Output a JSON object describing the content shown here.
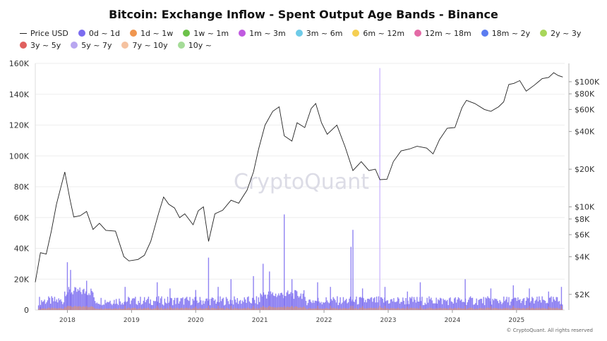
{
  "chart_data": {
    "type": "area",
    "title": "Bitcoin: Exchange Inflow - Spent Output Age Bands - Binance",
    "legend": [
      {
        "name": "Price USD",
        "color": "#222222",
        "kind": "line"
      },
      {
        "name": "0d ~ 1d",
        "color": "#7b6cf0",
        "kind": "dot"
      },
      {
        "name": "1d ~ 1w",
        "color": "#f0964f",
        "kind": "dot"
      },
      {
        "name": "1w ~ 1m",
        "color": "#6cc24a",
        "kind": "dot"
      },
      {
        "name": "1m ~ 3m",
        "color": "#c05ae0",
        "kind": "dot"
      },
      {
        "name": "3m ~ 6m",
        "color": "#6fcbe8",
        "kind": "dot"
      },
      {
        "name": "6m ~ 12m",
        "color": "#f5cf52",
        "kind": "dot"
      },
      {
        "name": "12m ~ 18m",
        "color": "#e46aa6",
        "kind": "dot"
      },
      {
        "name": "18m ~ 2y",
        "color": "#5b7cf0",
        "kind": "dot"
      },
      {
        "name": "2y ~ 3y",
        "color": "#a8d65a",
        "kind": "dot"
      },
      {
        "name": "3y ~ 5y",
        "color": "#e0605e",
        "kind": "dot"
      },
      {
        "name": "5y ~ 7y",
        "color": "#b8a6f0",
        "kind": "dot"
      },
      {
        "name": "7y ~ 10y",
        "color": "#f5c2a0",
        "kind": "dot"
      },
      {
        "name": "10y ~",
        "color": "#a5dc98",
        "kind": "dot"
      }
    ],
    "left_axis": {
      "ticks": [
        "0",
        "20K",
        "40K",
        "60K",
        "80K",
        "100K",
        "120K",
        "140K",
        "160K"
      ],
      "min": 0,
      "max": 160000
    },
    "right_axis": {
      "scale": "log",
      "ticks": [
        {
          "label": "$2K",
          "value": 2000
        },
        {
          "label": "$4K",
          "value": 4000
        },
        {
          "label": "$6K",
          "value": 6000
        },
        {
          "label": "$8K",
          "value": 8000
        },
        {
          "label": "$10K",
          "value": 10000
        },
        {
          "label": "$20K",
          "value": 20000
        },
        {
          "label": "$40K",
          "value": 40000
        },
        {
          "label": "$60K",
          "value": 60000
        },
        {
          "label": "$80K",
          "value": 80000
        },
        {
          "label": "$100K",
          "value": 100000
        }
      ],
      "min": 1500,
      "max": 140000
    },
    "x_axis": {
      "labels": [
        "2018",
        "2019",
        "2020",
        "2021",
        "2022",
        "2023",
        "2024",
        "2025"
      ],
      "start": 2017.5,
      "end": 2025.75
    },
    "price_usd": [
      [
        2017.5,
        2500
      ],
      [
        2017.58,
        4300
      ],
      [
        2017.67,
        4200
      ],
      [
        2017.75,
        6400
      ],
      [
        2017.83,
        10500
      ],
      [
        2017.96,
        19000
      ],
      [
        2018.04,
        11500
      ],
      [
        2018.1,
        8300
      ],
      [
        2018.2,
        8500
      ],
      [
        2018.3,
        9200
      ],
      [
        2018.4,
        6600
      ],
      [
        2018.5,
        7400
      ],
      [
        2018.6,
        6500
      ],
      [
        2018.75,
        6400
      ],
      [
        2018.88,
        4000
      ],
      [
        2018.96,
        3700
      ],
      [
        2019.1,
        3800
      ],
      [
        2019.2,
        4100
      ],
      [
        2019.3,
        5300
      ],
      [
        2019.42,
        8800
      ],
      [
        2019.5,
        12000
      ],
      [
        2019.58,
        10500
      ],
      [
        2019.67,
        9800
      ],
      [
        2019.75,
        8200
      ],
      [
        2019.83,
        8800
      ],
      [
        2019.96,
        7200
      ],
      [
        2020.04,
        9300
      ],
      [
        2020.12,
        10000
      ],
      [
        2020.2,
        5300
      ],
      [
        2020.3,
        8800
      ],
      [
        2020.42,
        9400
      ],
      [
        2020.55,
        11300
      ],
      [
        2020.67,
        10700
      ],
      [
        2020.8,
        13600
      ],
      [
        2020.9,
        19000
      ],
      [
        2020.98,
        29000
      ],
      [
        2021.08,
        45000
      ],
      [
        2021.2,
        58000
      ],
      [
        2021.3,
        63000
      ],
      [
        2021.38,
        37000
      ],
      [
        2021.5,
        33500
      ],
      [
        2021.58,
        47000
      ],
      [
        2021.7,
        43000
      ],
      [
        2021.8,
        61000
      ],
      [
        2021.87,
        67000
      ],
      [
        2021.96,
        47000
      ],
      [
        2022.05,
        38000
      ],
      [
        2022.2,
        45000
      ],
      [
        2022.33,
        30000
      ],
      [
        2022.45,
        19500
      ],
      [
        2022.58,
        23000
      ],
      [
        2022.7,
        19500
      ],
      [
        2022.8,
        20000
      ],
      [
        2022.87,
        16500
      ],
      [
        2022.98,
        16600
      ],
      [
        2023.08,
        23000
      ],
      [
        2023.2,
        28000
      ],
      [
        2023.33,
        29000
      ],
      [
        2023.45,
        30500
      ],
      [
        2023.6,
        29500
      ],
      [
        2023.7,
        26500
      ],
      [
        2023.8,
        34500
      ],
      [
        2023.92,
        42500
      ],
      [
        2024.04,
        43000
      ],
      [
        2024.15,
        62000
      ],
      [
        2024.22,
        71000
      ],
      [
        2024.35,
        67000
      ],
      [
        2024.5,
        60000
      ],
      [
        2024.6,
        58000
      ],
      [
        2024.72,
        63000
      ],
      [
        2024.8,
        69000
      ],
      [
        2024.88,
        95000
      ],
      [
        2024.96,
        97000
      ],
      [
        2025.05,
        102000
      ],
      [
        2025.15,
        84000
      ],
      [
        2025.28,
        94000
      ],
      [
        2025.4,
        106000
      ],
      [
        2025.5,
        108000
      ],
      [
        2025.58,
        118000
      ],
      [
        2025.65,
        112000
      ],
      [
        2025.72,
        109000
      ]
    ],
    "inflow_spikes": [
      [
        2017.58,
        2000
      ],
      [
        2018.0,
        31000
      ],
      [
        2018.05,
        26000
      ],
      [
        2018.3,
        19000
      ],
      [
        2018.9,
        15000
      ],
      [
        2019.4,
        18000
      ],
      [
        2019.6,
        14000
      ],
      [
        2020.0,
        13000
      ],
      [
        2020.2,
        34000
      ],
      [
        2020.35,
        15000
      ],
      [
        2020.55,
        20000
      ],
      [
        2020.9,
        22000
      ],
      [
        2021.05,
        30000
      ],
      [
        2021.15,
        25000
      ],
      [
        2021.38,
        62000
      ],
      [
        2021.5,
        20000
      ],
      [
        2021.9,
        18000
      ],
      [
        2022.1,
        15000
      ],
      [
        2022.42,
        41000
      ],
      [
        2022.45,
        52000
      ],
      [
        2022.6,
        14000
      ],
      [
        2022.87,
        157000
      ],
      [
        2022.95,
        15000
      ],
      [
        2023.3,
        12000
      ],
      [
        2023.5,
        18000
      ],
      [
        2023.75,
        8000
      ],
      [
        2024.2,
        20000
      ],
      [
        2024.6,
        14000
      ],
      [
        2024.95,
        16000
      ],
      [
        2025.2,
        14000
      ],
      [
        2025.5,
        12000
      ],
      [
        2025.7,
        15000
      ]
    ],
    "watermark": "CryptoQuant",
    "credit": "© CryptoQuant. All rights reserved"
  }
}
